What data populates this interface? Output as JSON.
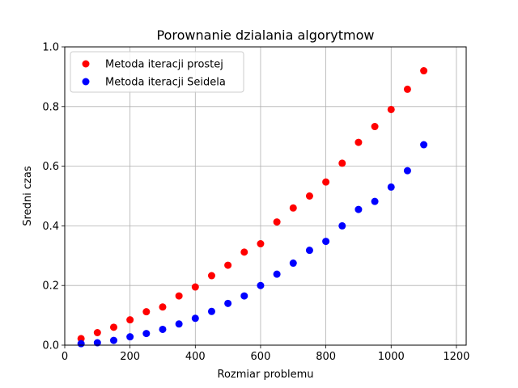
{
  "chart_data": {
    "type": "scatter",
    "title": "Porownanie dzialania algorytmow",
    "xlabel": "Rozmiar problemu",
    "ylabel": "Sredni czas",
    "xlim": [
      0,
      1230
    ],
    "ylim": [
      0,
      1.0
    ],
    "xticks": [
      0,
      200,
      400,
      600,
      800,
      1000,
      1200
    ],
    "yticks": [
      0.0,
      0.2,
      0.4,
      0.6,
      0.8,
      1.0
    ],
    "xtick_labels": [
      "0",
      "200",
      "400",
      "600",
      "800",
      "1000",
      "1200"
    ],
    "ytick_labels": [
      "0.0",
      "0.2",
      "0.4",
      "0.6",
      "0.8",
      "1.0"
    ],
    "grid": true,
    "legend_position": "top-left",
    "x": [
      50,
      100,
      150,
      200,
      250,
      300,
      350,
      400,
      450,
      500,
      550,
      600,
      650,
      700,
      750,
      800,
      850,
      900,
      950,
      1000,
      1050,
      1100
    ],
    "series": [
      {
        "name": "Metoda iteracji prostej",
        "color": "#ff0000",
        "values": [
          0.022,
          0.042,
          0.06,
          0.085,
          0.112,
          0.128,
          0.165,
          0.195,
          0.233,
          0.268,
          0.312,
          0.34,
          0.413,
          0.46,
          0.5,
          0.547,
          0.61,
          0.68,
          0.733,
          0.79,
          0.858,
          0.92
        ]
      },
      {
        "name": "Metoda iteracji Seidela",
        "color": "#0000ff",
        "values": [
          0.005,
          0.008,
          0.016,
          0.028,
          0.039,
          0.053,
          0.071,
          0.09,
          0.113,
          0.14,
          0.165,
          0.2,
          0.238,
          0.275,
          0.318,
          0.348,
          0.4,
          0.455,
          0.482,
          0.53,
          0.585,
          0.672
        ]
      }
    ]
  }
}
